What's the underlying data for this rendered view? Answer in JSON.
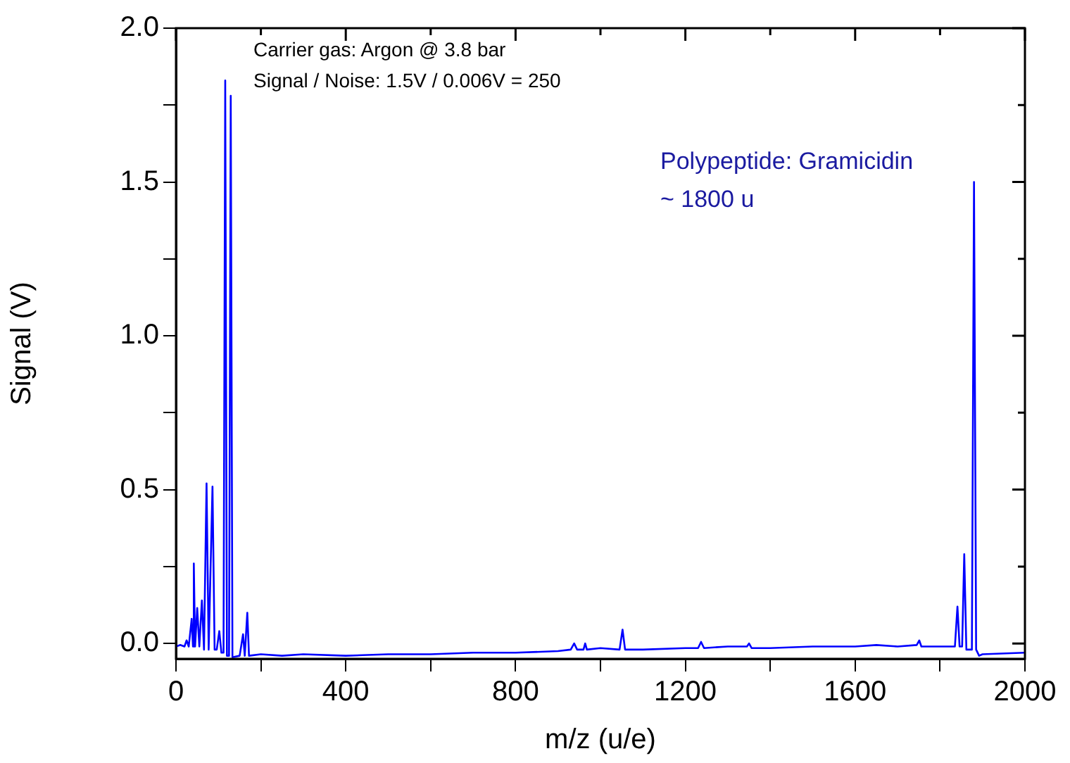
{
  "chart_data": {
    "type": "line",
    "xlabel": "m/z (u/e)",
    "ylabel": "Signal (V)",
    "annotations": [
      "Carrier gas: Argon @ 3.8 bar",
      "Signal / Noise: 1.5V / 0.006V = 250",
      "Polypeptide: Gramicidin",
      "~ 1800 u"
    ],
    "xlim": [
      0,
      2000
    ],
    "ylim": [
      -0.05,
      2.0
    ],
    "xticks": [
      0,
      {
        "value": 200,
        "label": null
      },
      400,
      {
        "value": 600,
        "label": null
      },
      800,
      {
        "value": 1000,
        "label": null
      },
      1200,
      {
        "value": 1400,
        "label": null
      },
      1600,
      {
        "value": 1800,
        "label": null
      },
      2000
    ],
    "yticks": [
      {
        "value": 0,
        "label": "0.0"
      },
      {
        "value": 0.25,
        "label": null
      },
      {
        "value": 0.5,
        "label": "0.5"
      },
      {
        "value": 0.75,
        "label": null
      },
      {
        "value": 1.0,
        "label": "1.0"
      },
      {
        "value": 1.25,
        "label": null
      },
      {
        "value": 1.5,
        "label": "1.5"
      },
      {
        "value": 1.75,
        "label": null
      },
      {
        "value": 2.0,
        "label": "2.0"
      }
    ],
    "grid": false,
    "legend": false,
    "marker": "none",
    "line_style": "solid",
    "series": [
      {
        "color": "#0000ff",
        "x": [
          0,
          10,
          20,
          25,
          30,
          37,
          40,
          42,
          45,
          50,
          55,
          61,
          66,
          72,
          77,
          86,
          91,
          96,
          102,
          107,
          112,
          116,
          120,
          125,
          129,
          133,
          150,
          158,
          162,
          168,
          172,
          200,
          250,
          300,
          400,
          500,
          600,
          700,
          800,
          900,
          930,
          938,
          945,
          960,
          964,
          968,
          1000,
          1045,
          1052,
          1058,
          1100,
          1200,
          1230,
          1237,
          1244,
          1300,
          1345,
          1350,
          1356,
          1400,
          1500,
          1600,
          1650,
          1700,
          1745,
          1751,
          1756,
          1800,
          1835,
          1841,
          1846,
          1852,
          1857,
          1862,
          1875,
          1880,
          1885,
          1892,
          1900,
          2000
        ],
        "values": [
          -0.01,
          -0.005,
          -0.01,
          0.01,
          -0.01,
          0.08,
          -0.01,
          0.26,
          -0.01,
          0.115,
          -0.01,
          0.14,
          -0.02,
          0.52,
          -0.02,
          0.51,
          -0.02,
          -0.02,
          0.04,
          -0.03,
          -0.03,
          1.83,
          -0.04,
          -0.04,
          1.78,
          -0.045,
          -0.04,
          0.03,
          -0.04,
          0.1,
          -0.04,
          -0.035,
          -0.04,
          -0.035,
          -0.04,
          -0.035,
          -0.035,
          -0.03,
          -0.03,
          -0.025,
          -0.02,
          0.0,
          -0.02,
          -0.02,
          0.0,
          -0.02,
          -0.015,
          -0.02,
          0.045,
          -0.02,
          -0.02,
          -0.015,
          -0.015,
          0.005,
          -0.015,
          -0.01,
          -0.01,
          0.0,
          -0.015,
          -0.015,
          -0.01,
          -0.01,
          -0.005,
          -0.01,
          -0.005,
          0.01,
          -0.01,
          -0.01,
          -0.01,
          0.12,
          -0.01,
          -0.01,
          0.29,
          -0.02,
          -0.02,
          1.5,
          -0.02,
          -0.04,
          -0.035,
          -0.03
        ]
      }
    ]
  }
}
